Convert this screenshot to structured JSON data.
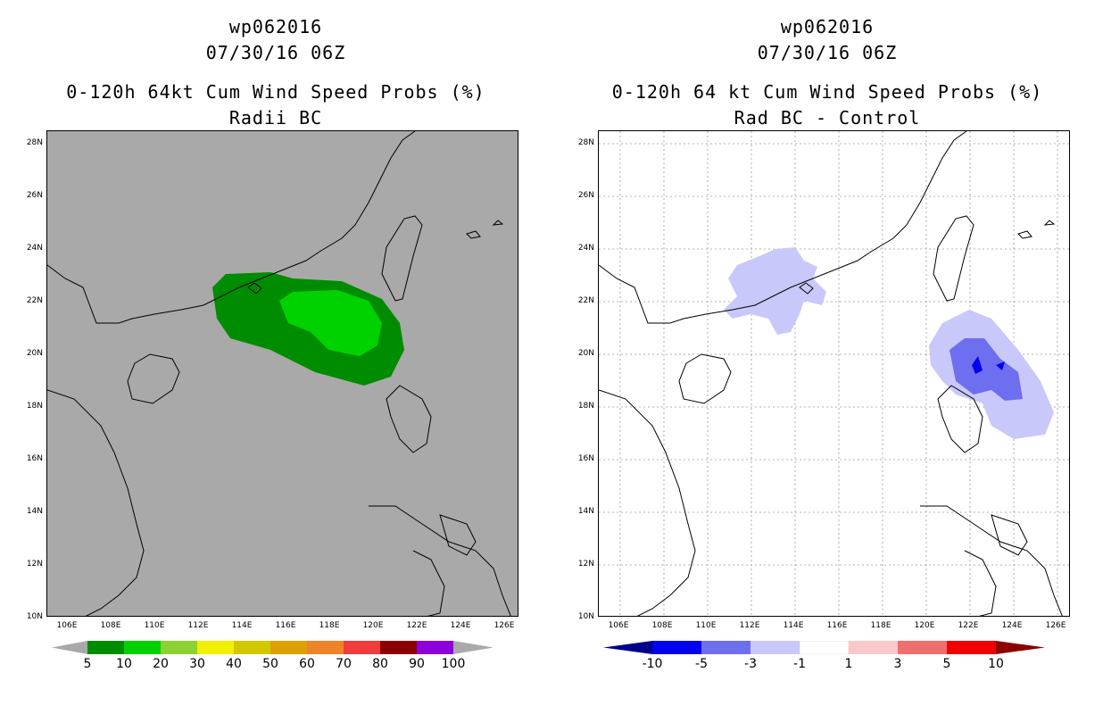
{
  "left": {
    "title_line1": "wp062016",
    "title_line2": "07/30/16 06Z",
    "title_line3": "0-120h 64kt Cum Wind Speed Probs (%)",
    "title_line4": "Radii BC",
    "background_color": "#a9a9a9",
    "colorbar": {
      "colors": [
        "#008c00",
        "#00d200",
        "#8cd232",
        "#f0f000",
        "#d2c800",
        "#dca000",
        "#f08228",
        "#f03c3c",
        "#8c0000",
        "#8c00dc"
      ],
      "end_left_color": "#a9a9a9",
      "end_right_color": "#a9a9a9",
      "labels": [
        "5",
        "10",
        "20",
        "30",
        "40",
        "50",
        "60",
        "70",
        "80",
        "90",
        "100"
      ]
    }
  },
  "right": {
    "title_line1": "wp062016",
    "title_line2": "07/30/16 06Z",
    "title_line3": "0-120h 64 kt Cum Wind Speed Probs (%)",
    "title_line4": "Rad BC - Control",
    "background_color": "#ffffff",
    "colorbar": {
      "colors": [
        "#0000f0",
        "#6e6ef0",
        "#c8c8fa",
        "#ffffff",
        "#fac8c8",
        "#f06e6e",
        "#f00000"
      ],
      "end_left_color": "#00008c",
      "end_right_color": "#8c0000",
      "labels": [
        "-10",
        "-5",
        "-3",
        "-1",
        "1",
        "3",
        "5",
        "10"
      ]
    }
  },
  "axes": {
    "lat_labels": [
      "28N",
      "26N",
      "24N",
      "22N",
      "20N",
      "18N",
      "16N",
      "14N",
      "12N",
      "10N"
    ],
    "lon_labels": [
      "106E",
      "108E",
      "110E",
      "112E",
      "114E",
      "116E",
      "118E",
      "120E",
      "122E",
      "124E",
      "126E"
    ],
    "lat_range": [
      10,
      28.5
    ],
    "lon_range": [
      105,
      127
    ]
  }
}
